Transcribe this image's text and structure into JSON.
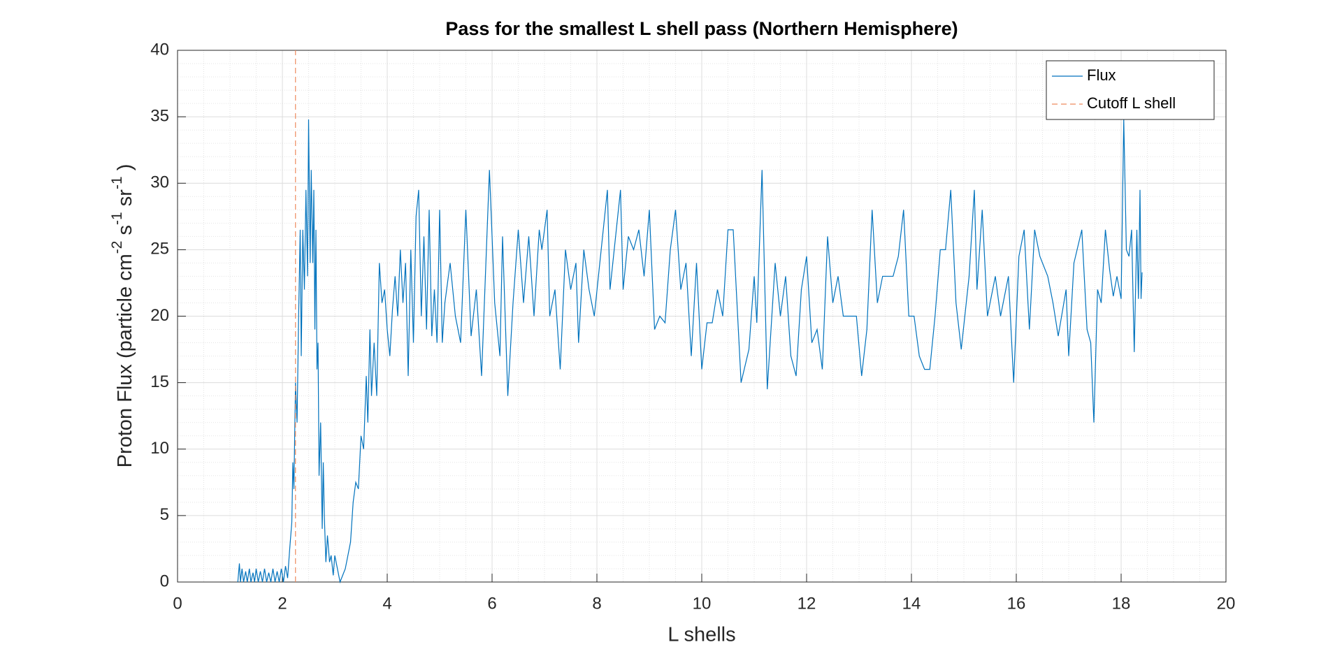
{
  "chart_data": {
    "type": "line",
    "title": "Pass for the smallest L shell pass (Northern Hemisphere)",
    "xlabel": "L shells",
    "ylabel_parts": [
      "Proton Flux (particle cm",
      "-2",
      " s",
      "-1",
      " sr",
      "-1",
      " )"
    ],
    "xlim": [
      0,
      20
    ],
    "xticks": [
      0,
      2,
      4,
      6,
      8,
      10,
      12,
      14,
      16,
      18,
      20
    ],
    "ylim": [
      0,
      40
    ],
    "yticks": [
      0,
      5,
      10,
      15,
      20,
      25,
      30,
      35,
      40
    ],
    "grid": true,
    "minor_grid": true,
    "legend": "northeast",
    "series": [
      {
        "name": "Flux",
        "color": "#0072bd",
        "style": "solid",
        "x": [
          1.15,
          1.18,
          1.2,
          1.23,
          1.26,
          1.3,
          1.33,
          1.37,
          1.4,
          1.44,
          1.47,
          1.5,
          1.54,
          1.58,
          1.62,
          1.66,
          1.7,
          1.74,
          1.78,
          1.82,
          1.86,
          1.9,
          1.94,
          1.98,
          2.02,
          2.06,
          2.1,
          2.14,
          2.18,
          2.2,
          2.22,
          2.25,
          2.28,
          2.31,
          2.34,
          2.36,
          2.39,
          2.42,
          2.45,
          2.48,
          2.5,
          2.53,
          2.55,
          2.58,
          2.6,
          2.62,
          2.64,
          2.66,
          2.68,
          2.7,
          2.73,
          2.76,
          2.78,
          2.8,
          2.83,
          2.86,
          2.9,
          2.93,
          2.97,
          3.0,
          3.05,
          3.1,
          3.15,
          3.2,
          3.25,
          3.3,
          3.35,
          3.4,
          3.45,
          3.5,
          3.55,
          3.6,
          3.63,
          3.67,
          3.7,
          3.75,
          3.8,
          3.85,
          3.9,
          3.95,
          4.0,
          4.05,
          4.1,
          4.15,
          4.2,
          4.25,
          4.3,
          4.35,
          4.4,
          4.45,
          4.5,
          4.55,
          4.6,
          4.65,
          4.7,
          4.75,
          4.8,
          4.85,
          4.9,
          4.95,
          5.0,
          5.05,
          5.1,
          5.2,
          5.3,
          5.4,
          5.5,
          5.6,
          5.7,
          5.8,
          5.95,
          6.05,
          6.15,
          6.2,
          6.3,
          6.4,
          6.5,
          6.6,
          6.7,
          6.8,
          6.9,
          6.95,
          7.05,
          7.1,
          7.2,
          7.3,
          7.4,
          7.5,
          7.6,
          7.65,
          7.75,
          7.85,
          7.95,
          8.2,
          8.25,
          8.45,
          8.5,
          8.6,
          8.7,
          8.8,
          8.9,
          9.0,
          9.1,
          9.2,
          9.3,
          9.4,
          9.5,
          9.6,
          9.7,
          9.8,
          9.9,
          10.0,
          10.1,
          10.2,
          10.3,
          10.4,
          10.5,
          10.6,
          10.75,
          10.9,
          11.0,
          11.05,
          11.15,
          11.25,
          11.4,
          11.5,
          11.6,
          11.7,
          11.8,
          11.9,
          12.0,
          12.1,
          12.2,
          12.3,
          12.4,
          12.5,
          12.6,
          12.7,
          12.95,
          13.05,
          13.15,
          13.25,
          13.35,
          13.45,
          13.65,
          13.75,
          13.85,
          13.95,
          14.05,
          14.15,
          14.25,
          14.35,
          14.45,
          14.55,
          14.65,
          14.75,
          14.85,
          14.95,
          15.1,
          15.2,
          15.25,
          15.35,
          15.45,
          15.6,
          15.7,
          15.85,
          15.95,
          16.05,
          16.15,
          16.25,
          16.35,
          16.45,
          16.6,
          16.7,
          16.8,
          16.95,
          17.0,
          17.1,
          17.25,
          17.35,
          17.42,
          17.48,
          17.55,
          17.62,
          17.7,
          17.78,
          17.85,
          17.92,
          18.0,
          18.05,
          18.1,
          18.15,
          18.2,
          18.25,
          18.3,
          18.33,
          18.36,
          18.38,
          18.4
        ],
        "values": [
          0,
          1.4,
          0,
          1,
          0,
          0.8,
          0,
          1,
          0,
          0.7,
          0,
          1,
          0,
          0.8,
          0,
          1,
          0,
          0.7,
          0,
          1,
          0,
          0.8,
          0,
          1,
          0,
          1.2,
          0.3,
          2.5,
          4.5,
          9,
          7,
          15,
          12,
          20,
          26.5,
          17,
          26.5,
          22,
          29.5,
          23,
          34.8,
          24,
          31,
          24,
          29.5,
          19,
          26.5,
          16,
          18,
          8,
          12,
          4,
          9,
          5,
          1.5,
          3.5,
          1.5,
          2,
          0.5,
          2,
          1,
          0,
          0.5,
          1,
          2,
          3,
          6,
          7.5,
          7,
          11,
          10,
          15.5,
          12,
          19,
          14,
          18,
          14,
          24,
          21,
          22,
          19,
          17,
          20.5,
          23,
          20,
          25,
          21,
          24,
          15.5,
          25,
          18,
          27.5,
          29.5,
          20,
          26,
          19,
          28,
          18.5,
          22,
          18,
          28,
          18,
          21,
          24,
          20,
          18,
          28,
          18.5,
          22,
          15.5,
          31,
          21,
          17,
          26,
          14,
          21,
          26.5,
          21,
          26,
          20,
          26.5,
          25,
          28,
          20,
          22,
          16,
          25,
          22,
          24,
          18,
          25,
          22,
          20,
          29.5,
          22,
          29.5,
          22,
          26,
          25,
          26.5,
          23,
          28,
          19,
          20,
          19.5,
          25,
          28,
          22,
          24,
          17,
          24,
          16,
          19.5,
          19.5,
          22,
          20,
          26.5,
          26.5,
          15,
          17.5,
          23,
          19.5,
          31,
          14.5,
          24,
          20,
          23,
          17,
          15.5,
          22,
          24.5,
          18,
          19,
          16,
          26,
          21,
          23,
          20,
          20,
          15.5,
          19,
          28,
          21,
          23,
          23,
          24.5,
          28,
          20,
          20,
          17,
          16,
          16,
          20,
          25,
          25,
          29.5,
          21,
          17.5,
          23,
          29.5,
          22,
          28,
          20,
          23,
          20,
          23,
          15,
          24.5,
          26.5,
          19,
          26.5,
          24.5,
          23,
          21,
          18.5,
          22,
          17,
          24,
          26.5,
          19,
          18,
          12,
          22,
          21,
          26.5,
          23.5,
          21.5,
          23,
          21.3,
          34.8,
          25,
          24.5,
          26.5,
          17.3,
          26.5,
          21.3,
          29.5,
          21.3,
          23.3
        ]
      },
      {
        "name": "Cutoff L shell",
        "color": "#ee8a5e",
        "style": "dashed",
        "x": [
          2.25,
          2.25
        ],
        "values": [
          0,
          40
        ]
      }
    ]
  }
}
